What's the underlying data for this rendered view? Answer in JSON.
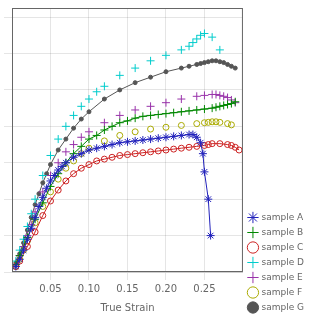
{
  "chart_data": {
    "type": "line",
    "x_label": "True Strain",
    "xlim": [
      0.0,
      0.3
    ],
    "xticks": [
      0.05,
      {
        "value": 0.1,
        "label": "0.10"
      },
      0.15,
      {
        "value": 0.2,
        "label": "0.20"
      },
      0.25
    ],
    "ylim": [
      0,
      1.45
    ],
    "yticks": [
      0,
      0.2,
      0.4,
      0.6,
      0.8,
      1.0,
      1.2,
      1.4
    ],
    "tick_labels": "x",
    "grid": true,
    "legend": "lower right",
    "series": [
      {
        "name": "sample A",
        "color": "#2222bb",
        "marker": "star",
        "line_style": "solid",
        "x": [
          0.005,
          0.01,
          0.015,
          0.02,
          0.025,
          0.03,
          0.035,
          0.04,
          0.045,
          0.05,
          0.055,
          0.06,
          0.065,
          0.07,
          0.08,
          0.09,
          0.1,
          0.11,
          0.12,
          0.13,
          0.14,
          0.15,
          0.16,
          0.17,
          0.18,
          0.19,
          0.2,
          0.21,
          0.22,
          0.23,
          0.235,
          0.24,
          0.245,
          0.248,
          0.25,
          0.255,
          0.258
        ],
        "values": [
          0.03,
          0.07,
          0.12,
          0.18,
          0.24,
          0.3,
          0.36,
          0.41,
          0.46,
          0.5,
          0.53,
          0.56,
          0.58,
          0.6,
          0.63,
          0.65,
          0.67,
          0.68,
          0.69,
          0.7,
          0.71,
          0.715,
          0.72,
          0.725,
          0.73,
          0.735,
          0.74,
          0.745,
          0.75,
          0.755,
          0.755,
          0.74,
          0.71,
          0.65,
          0.55,
          0.4,
          0.2
        ]
      },
      {
        "name": "sample B",
        "color": "#008800",
        "marker": "plus",
        "line_style": "solid",
        "x": [
          0.005,
          0.01,
          0.02,
          0.03,
          0.04,
          0.05,
          0.06,
          0.07,
          0.08,
          0.09,
          0.1,
          0.11,
          0.12,
          0.13,
          0.14,
          0.15,
          0.16,
          0.17,
          0.18,
          0.19,
          0.2,
          0.21,
          0.22,
          0.23,
          0.24,
          0.25,
          0.26,
          0.265,
          0.27,
          0.275,
          0.28,
          0.285,
          0.29
        ],
        "values": [
          0.04,
          0.09,
          0.19,
          0.29,
          0.38,
          0.47,
          0.54,
          0.6,
          0.65,
          0.69,
          0.73,
          0.75,
          0.78,
          0.8,
          0.82,
          0.83,
          0.845,
          0.855,
          0.86,
          0.865,
          0.87,
          0.875,
          0.88,
          0.885,
          0.89,
          0.895,
          0.9,
          0.905,
          0.91,
          0.915,
          0.92,
          0.925,
          0.935
        ]
      },
      {
        "name": "sample C",
        "color": "#cc2222",
        "marker": "circle",
        "line_style": "solid",
        "x": [
          0.005,
          0.01,
          0.02,
          0.03,
          0.04,
          0.05,
          0.06,
          0.07,
          0.08,
          0.09,
          0.1,
          0.11,
          0.12,
          0.13,
          0.14,
          0.15,
          0.16,
          0.17,
          0.18,
          0.19,
          0.2,
          0.21,
          0.22,
          0.23,
          0.24,
          0.25,
          0.255,
          0.26,
          0.27,
          0.28,
          0.285,
          0.29,
          0.295
        ],
        "values": [
          0.03,
          0.06,
          0.14,
          0.22,
          0.31,
          0.39,
          0.45,
          0.5,
          0.54,
          0.57,
          0.59,
          0.61,
          0.62,
          0.63,
          0.64,
          0.645,
          0.65,
          0.655,
          0.66,
          0.665,
          0.67,
          0.675,
          0.68,
          0.685,
          0.69,
          0.695,
          0.7,
          0.705,
          0.705,
          0.7,
          0.695,
          0.685,
          0.67
        ]
      },
      {
        "name": "sample D",
        "color": "#00cccc",
        "marker": "plus",
        "line_style": "none",
        "x": [
          0.005,
          0.01,
          0.015,
          0.02,
          0.025,
          0.03,
          0.04,
          0.05,
          0.06,
          0.07,
          0.08,
          0.09,
          0.1,
          0.11,
          0.12,
          0.14,
          0.16,
          0.18,
          0.2,
          0.22,
          0.23,
          0.235,
          0.24,
          0.245,
          0.25,
          0.26,
          0.27
        ],
        "values": [
          0.06,
          0.12,
          0.18,
          0.25,
          0.32,
          0.4,
          0.53,
          0.64,
          0.73,
          0.8,
          0.86,
          0.91,
          0.95,
          0.99,
          1.02,
          1.08,
          1.12,
          1.16,
          1.19,
          1.22,
          1.24,
          1.26,
          1.28,
          1.3,
          1.31,
          1.29,
          1.22
        ]
      },
      {
        "name": "sample E",
        "color": "#9933aa",
        "marker": "plus",
        "line_style": "none",
        "x": [
          0.005,
          0.01,
          0.015,
          0.02,
          0.025,
          0.03,
          0.04,
          0.05,
          0.06,
          0.07,
          0.08,
          0.09,
          0.1,
          0.12,
          0.14,
          0.16,
          0.18,
          0.2,
          0.22,
          0.24,
          0.25,
          0.26,
          0.265,
          0.27,
          0.275,
          0.28,
          0.285,
          0.29
        ],
        "values": [
          0.04,
          0.09,
          0.14,
          0.2,
          0.26,
          0.33,
          0.44,
          0.53,
          0.6,
          0.66,
          0.7,
          0.74,
          0.77,
          0.82,
          0.86,
          0.89,
          0.91,
          0.93,
          0.95,
          0.965,
          0.97,
          0.975,
          0.975,
          0.97,
          0.965,
          0.958,
          0.945,
          0.93
        ]
      },
      {
        "name": "sample F",
        "color": "#aaaa00",
        "marker": "circle",
        "line_style": "none",
        "x": [
          0.005,
          0.01,
          0.015,
          0.02,
          0.03,
          0.04,
          0.05,
          0.06,
          0.07,
          0.08,
          0.09,
          0.1,
          0.12,
          0.14,
          0.16,
          0.18,
          0.2,
          0.22,
          0.24,
          0.25,
          0.255,
          0.26,
          0.265,
          0.27,
          0.28,
          0.285
        ],
        "values": [
          0.03,
          0.07,
          0.12,
          0.17,
          0.27,
          0.36,
          0.44,
          0.51,
          0.57,
          0.61,
          0.65,
          0.68,
          0.72,
          0.75,
          0.77,
          0.785,
          0.795,
          0.805,
          0.815,
          0.82,
          0.822,
          0.825,
          0.825,
          0.822,
          0.815,
          0.808
        ]
      },
      {
        "name": "sample G",
        "color": "#555555",
        "marker": "point",
        "line_style": "solid",
        "x": [
          0.005,
          0.01,
          0.015,
          0.02,
          0.025,
          0.03,
          0.035,
          0.04,
          0.045,
          0.05,
          0.06,
          0.07,
          0.08,
          0.09,
          0.1,
          0.12,
          0.14,
          0.16,
          0.18,
          0.2,
          0.22,
          0.23,
          0.24,
          0.245,
          0.25,
          0.255,
          0.26,
          0.265,
          0.27,
          0.275,
          0.28,
          0.285,
          0.29
        ],
        "values": [
          0.05,
          0.1,
          0.16,
          0.23,
          0.3,
          0.37,
          0.43,
          0.49,
          0.54,
          0.59,
          0.67,
          0.73,
          0.79,
          0.84,
          0.88,
          0.95,
          1.0,
          1.04,
          1.07,
          1.1,
          1.12,
          1.13,
          1.14,
          1.145,
          1.15,
          1.155,
          1.16,
          1.16,
          1.155,
          1.15,
          1.14,
          1.13,
          1.12
        ]
      }
    ]
  }
}
